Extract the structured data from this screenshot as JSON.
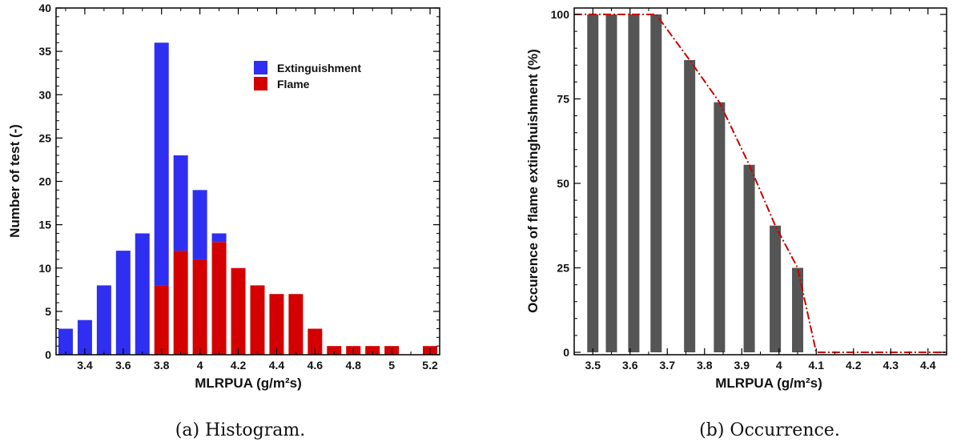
{
  "chart_data": [
    {
      "type": "bar",
      "caption": "(a) Histogram.",
      "xlabel": "MLRPUA (g/m²s)",
      "ylabel": "Number of test (-)",
      "xlim": [
        3.25,
        5.25
      ],
      "ylim": [
        0,
        40
      ],
      "xticks": [
        "3.4",
        "3.6",
        "3.8",
        "4",
        "4.2",
        "4.4",
        "4.6",
        "4.8",
        "5",
        "5.2"
      ],
      "yticks": [
        "0",
        "5",
        "10",
        "15",
        "20",
        "25",
        "30",
        "35",
        "40"
      ],
      "legend_position": "top-right",
      "colors": {
        "extinguishment": "#2f2ff2",
        "flame": "#d40000"
      },
      "categories": [
        3.3,
        3.4,
        3.5,
        3.6,
        3.7,
        3.8,
        3.9,
        4.0,
        4.1,
        4.2,
        4.3,
        4.4,
        4.5,
        4.6,
        4.7,
        4.8,
        4.9,
        5.0,
        5.2
      ],
      "series": [
        {
          "name": "Extinguishment",
          "values": [
            3,
            4,
            8,
            12,
            14,
            28,
            11,
            8,
            1,
            0,
            0,
            0,
            0,
            0,
            0,
            0,
            0,
            0,
            0
          ]
        },
        {
          "name": "Flame",
          "values": [
            0,
            0,
            0,
            0,
            0,
            8,
            12,
            11,
            13,
            10,
            8,
            7,
            7,
            3,
            1,
            1,
            1,
            1,
            1
          ]
        }
      ]
    },
    {
      "type": "bar",
      "caption": "(b) Occurrence.",
      "xlabel": "MLRPUA (g/m²s)",
      "ylabel": "Occurence of flame extinghuishment (%)",
      "xlim": [
        3.45,
        4.45
      ],
      "ylim": [
        0,
        100
      ],
      "xticks": [
        "3.5",
        "3.6",
        "3.7",
        "3.8",
        "3.9",
        "4",
        "4.1",
        "4.2",
        "4.3",
        "4.4"
      ],
      "yticks": [
        "0",
        "25",
        "50",
        "75",
        "100"
      ],
      "colors": {
        "bars": "#555555",
        "line": "#cc0000"
      },
      "categories": [
        3.5,
        3.55,
        3.61,
        3.67,
        3.76,
        3.84,
        3.92,
        3.99,
        4.05
      ],
      "values": [
        100,
        100,
        100,
        100,
        86.5,
        74,
        55.5,
        37.5,
        25
      ],
      "line": {
        "x": [
          3.45,
          3.5,
          3.55,
          3.61,
          3.67,
          3.76,
          3.84,
          3.92,
          3.99,
          4.05,
          4.1,
          4.2,
          4.3,
          4.4,
          4.45
        ],
        "y": [
          100,
          100,
          100,
          100,
          100,
          86.5,
          74,
          55.5,
          37.5,
          25,
          0,
          0,
          0,
          0,
          0
        ]
      }
    }
  ]
}
